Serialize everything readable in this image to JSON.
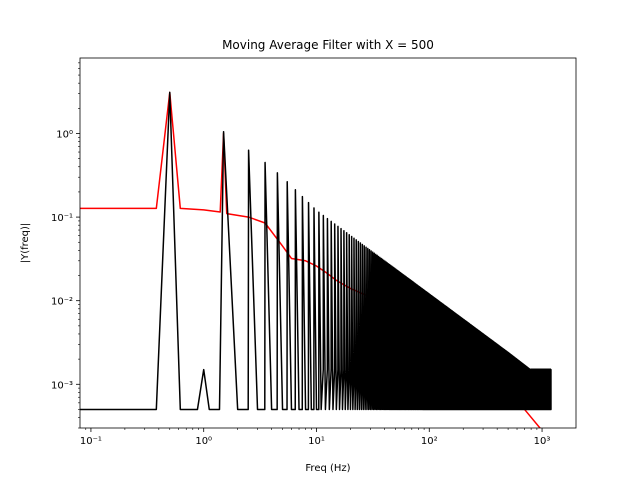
{
  "chart_data": {
    "type": "line",
    "title": "Moving Average Filter with X = 500",
    "xlabel": "Freq (Hz)",
    "ylabel": "|Y(freq)|",
    "xscale": "log",
    "yscale": "log",
    "xlim": [
      0.08,
      2000
    ],
    "ylim": [
      0.0003,
      8
    ],
    "grid": false,
    "x_ticks": [
      {
        "value": 0.1,
        "label": "10⁻¹"
      },
      {
        "value": 1,
        "label": "10⁰"
      },
      {
        "value": 10,
        "label": "10¹"
      },
      {
        "value": 100,
        "label": "10²"
      },
      {
        "value": 1000,
        "label": "10³"
      }
    ],
    "y_ticks": [
      {
        "value": 0.001,
        "label": "10⁻³"
      },
      {
        "value": 0.01,
        "label": "10⁻²"
      },
      {
        "value": 0.1,
        "label": "10⁻¹"
      },
      {
        "value": 1,
        "label": "10⁰"
      }
    ],
    "series": [
      {
        "color": "#ff0000",
        "points": [
          [
            0.08,
            0.127
          ],
          [
            0.38,
            0.127
          ],
          [
            0.5,
            3.1
          ],
          [
            0.62,
            0.127
          ],
          [
            1.0,
            0.122
          ],
          [
            1.4,
            0.115
          ],
          [
            1.5,
            1.0
          ],
          [
            1.6,
            0.11
          ],
          [
            2.5,
            0.1
          ],
          [
            3.5,
            0.085
          ],
          [
            5,
            0.045
          ],
          [
            6,
            0.032
          ],
          [
            8,
            0.03
          ],
          [
            10,
            0.026
          ],
          [
            12,
            0.022
          ],
          [
            15,
            0.0175
          ],
          [
            20,
            0.014
          ],
          [
            30,
            0.011
          ],
          [
            50,
            0.0075
          ],
          [
            100,
            0.0042
          ],
          [
            200,
            0.0022
          ],
          [
            400,
            0.0011
          ],
          [
            700,
            0.0005
          ],
          [
            1000,
            0.00028
          ],
          [
            1200,
            0.00025
          ]
        ]
      },
      {
        "color": "#000000",
        "harmonics": {
          "fundamental_hz": 0.5,
          "step_hz": 1.0,
          "max_hz": 1200,
          "floor": 0.0005,
          "fundamental_peak": 3.1,
          "upper_band": 0.0015,
          "envelope": [
            [
              1.5,
              1.05
            ],
            [
              2.5,
              0.63
            ],
            [
              3.5,
              0.45
            ],
            [
              5,
              0.3
            ],
            [
              10,
              0.12
            ],
            [
              20,
              0.06
            ],
            [
              50,
              0.024
            ],
            [
              100,
              0.012
            ],
            [
              200,
              0.006
            ],
            [
              500,
              0.0024
            ],
            [
              900,
              0.0013
            ],
            [
              1200,
              0.0011
            ]
          ]
        }
      }
    ]
  }
}
